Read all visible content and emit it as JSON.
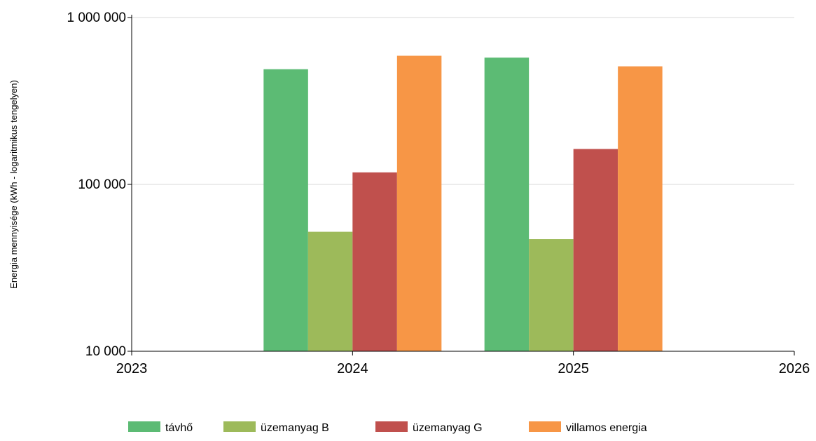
{
  "chart_data": {
    "type": "bar",
    "categories": [
      "2024",
      "2025"
    ],
    "series": [
      {
        "name": "távhő",
        "color": "#5cbb74",
        "values": [
          490000,
          575000
        ]
      },
      {
        "name": "üzemanyag B",
        "color": "#9dba5a",
        "values": [
          52000,
          47000
        ]
      },
      {
        "name": "üzemanyag G",
        "color": "#c0504d",
        "values": [
          118000,
          163000
        ]
      },
      {
        "name": "villamos energia",
        "color": "#f79646",
        "values": [
          590000,
          510000
        ]
      }
    ],
    "xlabel": "",
    "ylabel": "Energia mennyisége (kWh - logaritmikus tengelyen)",
    "x_ticks": [
      "2023",
      "2024",
      "2025",
      "2026"
    ],
    "y_ticks": [
      10000,
      100000,
      1000000
    ],
    "y_tick_labels": [
      "10 000",
      "100 000",
      "1 000 000"
    ],
    "ylim": [
      10000,
      1000000
    ],
    "y_scale": "log",
    "grid": true,
    "legend_position": "bottom"
  }
}
